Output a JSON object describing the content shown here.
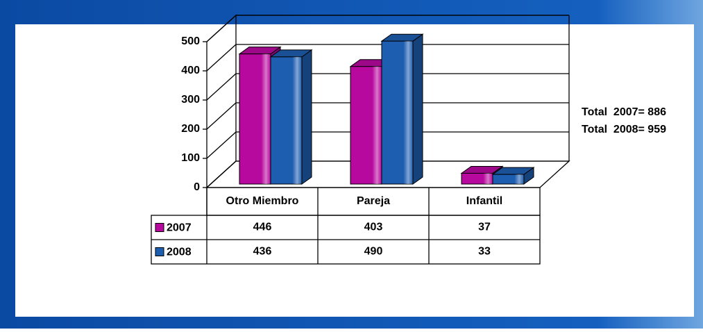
{
  "chart_data": {
    "type": "bar3d",
    "categories": [
      "Otro Miembro",
      "Pareja",
      "Infantil"
    ],
    "series": [
      {
        "name": "2007",
        "color": "#b8099f",
        "values": [
          446,
          403,
          37
        ]
      },
      {
        "name": "2008",
        "color": "#1e5eb0",
        "values": [
          436,
          490,
          33
        ]
      }
    ],
    "ylim": [
      0,
      500
    ],
    "yticks": [
      0,
      100,
      200,
      300,
      400,
      500
    ],
    "grid": true,
    "annotations": [
      "Total  2007= 886",
      "Total  2008= 959"
    ]
  }
}
